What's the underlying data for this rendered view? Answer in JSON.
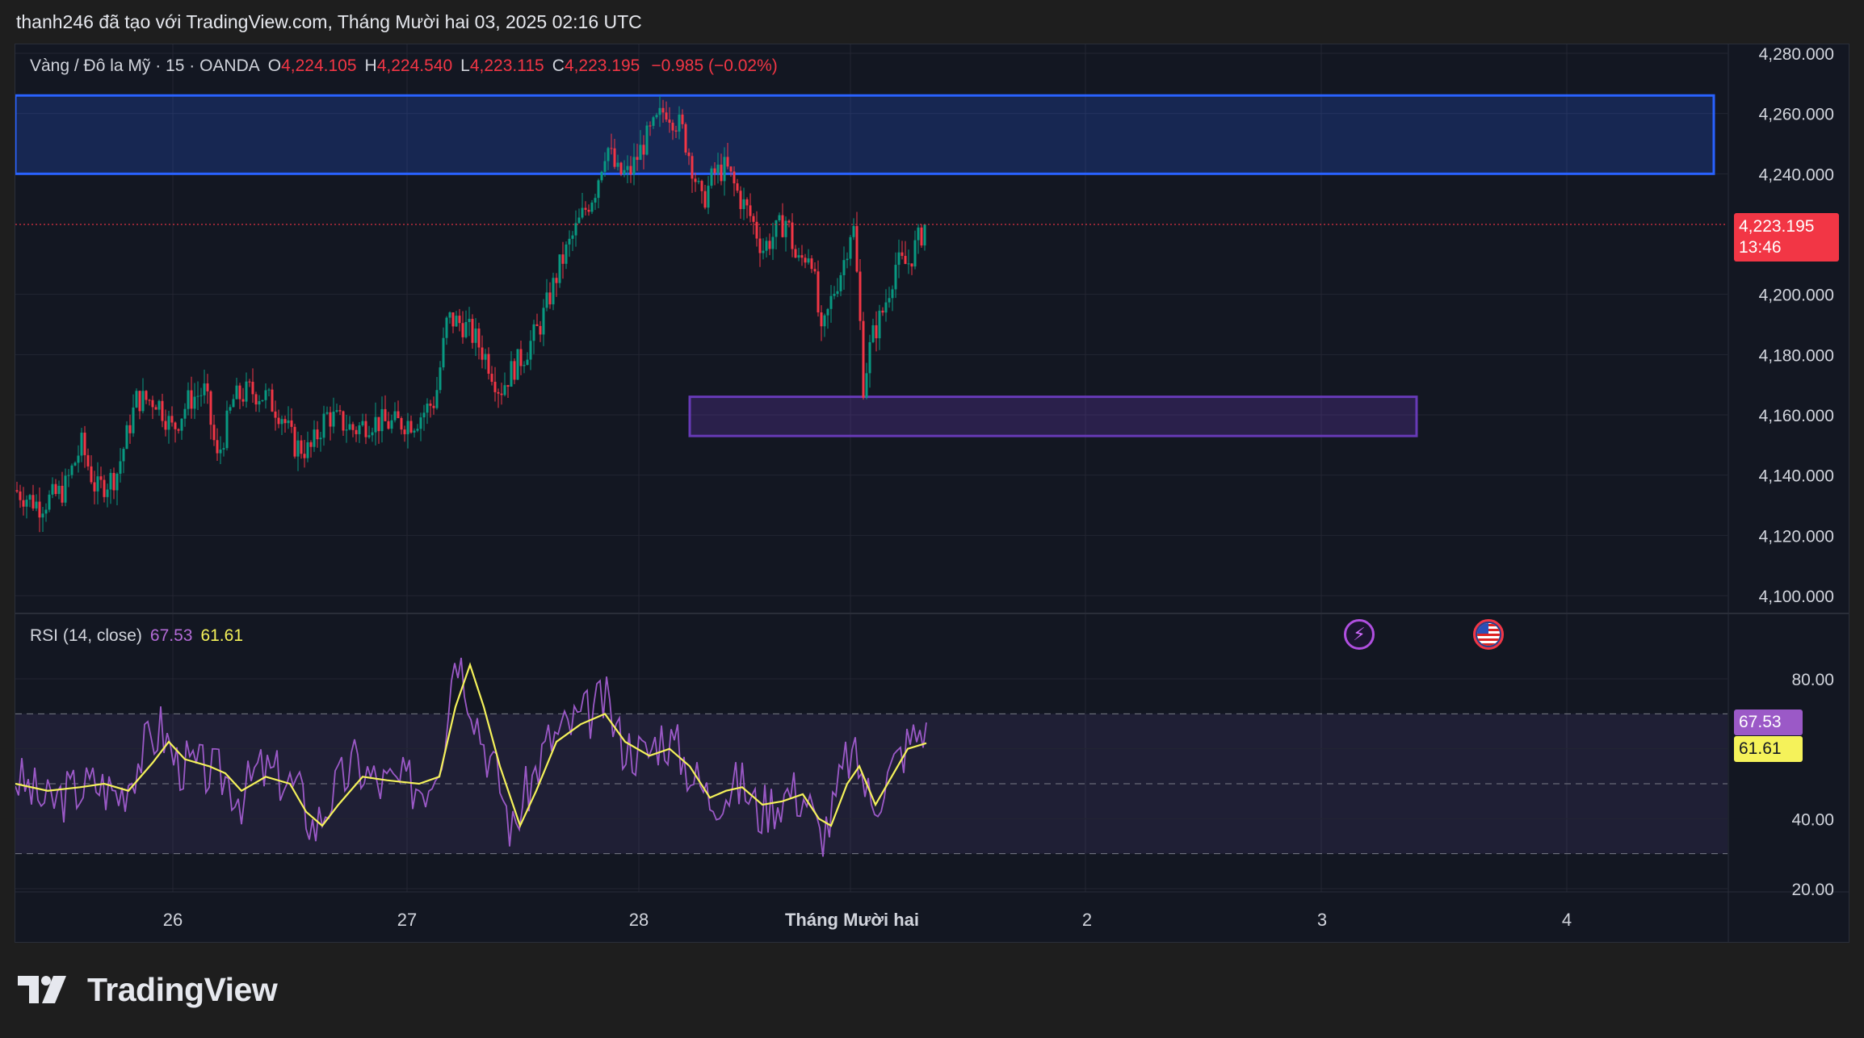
{
  "header": {
    "attribution": "thanh246 đã tạo với TradingView.com, Tháng Mười hai 03, 2025 02:16 UTC"
  },
  "legend": {
    "symbol": "Vàng / Đô la Mỹ · 15 · OANDA",
    "open_label": "O",
    "open": "4,224.105",
    "high_label": "H",
    "high": "4,224.540",
    "low_label": "L",
    "low": "4,223.115",
    "close_label": "C",
    "close": "4,223.195",
    "change": "−0.985 (−0.02%)"
  },
  "price_axis": {
    "ticks": [
      "4,280.000",
      "4,260.000",
      "4,240.000",
      "4,200.000",
      "4,180.000",
      "4,160.000",
      "4,140.000",
      "4,120.000",
      "4,100.000"
    ],
    "last_price": "4,223.195",
    "countdown": "13:46"
  },
  "rsi": {
    "title": "RSI (14, close)",
    "value": "67.53",
    "ma_value": "61.61",
    "ticks": [
      "80.00",
      "40.00",
      "20.00"
    ]
  },
  "time_axis": {
    "labels": [
      "26",
      "27",
      "28",
      "Tháng Mười hai",
      "2",
      "3",
      "4"
    ]
  },
  "events": {
    "lightning_icon": "lightning-event-icon",
    "flag_icon": "us-flag-event-icon"
  },
  "brand": {
    "name": "TradingView"
  },
  "colors": {
    "up": "#089981",
    "down": "#f23645",
    "rsi": "#9b59c7",
    "rsi_ma": "#f5f25a",
    "supply_zone": "#2962ff",
    "demand_zone": "#673ab7",
    "background": "#131722"
  },
  "chart_data": {
    "type": "candlestick",
    "symbol": "Vàng / Đô la Mỹ",
    "interval": "15",
    "ylim": [
      4100,
      4280
    ],
    "last_price": 4223.195,
    "price_path": [
      [
        0,
        4135
      ],
      [
        30,
        4130
      ],
      [
        60,
        4135
      ],
      [
        82,
        4150
      ],
      [
        100,
        4135
      ],
      [
        125,
        4140
      ],
      [
        150,
        4165
      ],
      [
        175,
        4165
      ],
      [
        195,
        4155
      ],
      [
        215,
        4165
      ],
      [
        235,
        4168
      ],
      [
        250,
        4145
      ],
      [
        270,
        4165
      ],
      [
        290,
        4168
      ],
      [
        310,
        4166
      ],
      [
        330,
        4160
      ],
      [
        345,
        4150
      ],
      [
        365,
        4148
      ],
      [
        385,
        4160
      ],
      [
        400,
        4158
      ],
      [
        420,
        4155
      ],
      [
        440,
        4158
      ],
      [
        465,
        4157
      ],
      [
        495,
        4158
      ],
      [
        520,
        4165
      ],
      [
        535,
        4192
      ],
      [
        555,
        4190
      ],
      [
        570,
        4185
      ],
      [
        585,
        4178
      ],
      [
        600,
        4168
      ],
      [
        615,
        4175
      ],
      [
        630,
        4180
      ],
      [
        650,
        4190
      ],
      [
        675,
        4210
      ],
      [
        700,
        4225
      ],
      [
        718,
        4235
      ],
      [
        732,
        4250
      ],
      [
        745,
        4240
      ],
      [
        760,
        4240
      ],
      [
        778,
        4250
      ],
      [
        790,
        4255
      ],
      [
        805,
        4262
      ],
      [
        825,
        4255
      ],
      [
        836,
        4245
      ],
      [
        850,
        4230
      ],
      [
        865,
        4240
      ],
      [
        880,
        4242
      ],
      [
        897,
        4232
      ],
      [
        912,
        4225
      ],
      [
        925,
        4215
      ],
      [
        940,
        4220
      ],
      [
        955,
        4225
      ],
      [
        968,
        4210
      ],
      [
        985,
        4215
      ],
      [
        998,
        4185
      ],
      [
        1012,
        4200
      ],
      [
        1025,
        4210
      ],
      [
        1037,
        4225
      ],
      [
        1045,
        4195
      ],
      [
        1050,
        4170
      ],
      [
        1060,
        4185
      ],
      [
        1075,
        4195
      ],
      [
        1090,
        4210
      ],
      [
        1105,
        4210
      ],
      [
        1118,
        4218
      ],
      [
        1128,
        4223.195
      ]
    ],
    "supply_zone": {
      "from": 4240,
      "to": 4266,
      "color": "#2962ff"
    },
    "demand_zone": {
      "from": 4153,
      "to": 4166,
      "color": "#673ab7"
    },
    "rsi": {
      "period": 14,
      "levels": [
        70,
        50,
        30
      ],
      "ylim": [
        18,
        88
      ],
      "value": 67.53,
      "ma": 61.61,
      "path": [
        [
          0,
          52
        ],
        [
          40,
          44
        ],
        [
          70,
          48
        ],
        [
          100,
          50
        ],
        [
          130,
          47
        ],
        [
          160,
          60
        ],
        [
          180,
          66
        ],
        [
          200,
          56
        ],
        [
          230,
          54
        ],
        [
          260,
          52
        ],
        [
          280,
          46
        ],
        [
          300,
          54
        ],
        [
          330,
          52
        ],
        [
          350,
          48
        ],
        [
          370,
          37
        ],
        [
          390,
          46
        ],
        [
          420,
          56
        ],
        [
          450,
          50
        ],
        [
          480,
          50
        ],
        [
          510,
          50
        ],
        [
          530,
          62
        ],
        [
          545,
          90
        ],
        [
          560,
          78
        ],
        [
          580,
          62
        ],
        [
          600,
          50
        ],
        [
          615,
          36
        ],
        [
          630,
          46
        ],
        [
          660,
          62
        ],
        [
          690,
          67
        ],
        [
          710,
          70
        ],
        [
          730,
          74
        ],
        [
          750,
          62
        ],
        [
          780,
          58
        ],
        [
          800,
          64
        ],
        [
          820,
          60
        ],
        [
          840,
          52
        ],
        [
          860,
          46
        ],
        [
          880,
          48
        ],
        [
          900,
          50
        ],
        [
          920,
          42
        ],
        [
          940,
          45
        ],
        [
          960,
          48
        ],
        [
          980,
          46
        ],
        [
          995,
          35
        ],
        [
          1010,
          40
        ],
        [
          1030,
          58
        ],
        [
          1045,
          55
        ],
        [
          1060,
          44
        ],
        [
          1080,
          52
        ],
        [
          1100,
          60
        ],
        [
          1115,
          64
        ],
        [
          1128,
          67.53
        ]
      ],
      "ma_path": [
        [
          0,
          50
        ],
        [
          40,
          48
        ],
        [
          80,
          49
        ],
        [
          110,
          50
        ],
        [
          140,
          48
        ],
        [
          170,
          56
        ],
        [
          190,
          62
        ],
        [
          210,
          57
        ],
        [
          240,
          55
        ],
        [
          260,
          53
        ],
        [
          280,
          48
        ],
        [
          310,
          52
        ],
        [
          340,
          50
        ],
        [
          360,
          42
        ],
        [
          380,
          38
        ],
        [
          400,
          44
        ],
        [
          430,
          52
        ],
        [
          460,
          51
        ],
        [
          500,
          50
        ],
        [
          525,
          52
        ],
        [
          545,
          72
        ],
        [
          563,
          84
        ],
        [
          580,
          72
        ],
        [
          600,
          55
        ],
        [
          625,
          38
        ],
        [
          645,
          48
        ],
        [
          670,
          62
        ],
        [
          700,
          67
        ],
        [
          730,
          70
        ],
        [
          755,
          62
        ],
        [
          785,
          58
        ],
        [
          810,
          60
        ],
        [
          835,
          55
        ],
        [
          860,
          46
        ],
        [
          880,
          48
        ],
        [
          900,
          49
        ],
        [
          925,
          44
        ],
        [
          950,
          45
        ],
        [
          975,
          47
        ],
        [
          995,
          40
        ],
        [
          1010,
          38
        ],
        [
          1030,
          50
        ],
        [
          1045,
          55
        ],
        [
          1065,
          44
        ],
        [
          1085,
          52
        ],
        [
          1105,
          60
        ],
        [
          1128,
          61.61
        ]
      ]
    },
    "x_labels": [
      "26",
      "27",
      "28",
      "Tháng Mười hai",
      "2",
      "3",
      "4"
    ],
    "y_ticks": [
      4100,
      4120,
      4140,
      4160,
      4180,
      4200,
      4240,
      4260,
      4280
    ],
    "grid": true
  }
}
